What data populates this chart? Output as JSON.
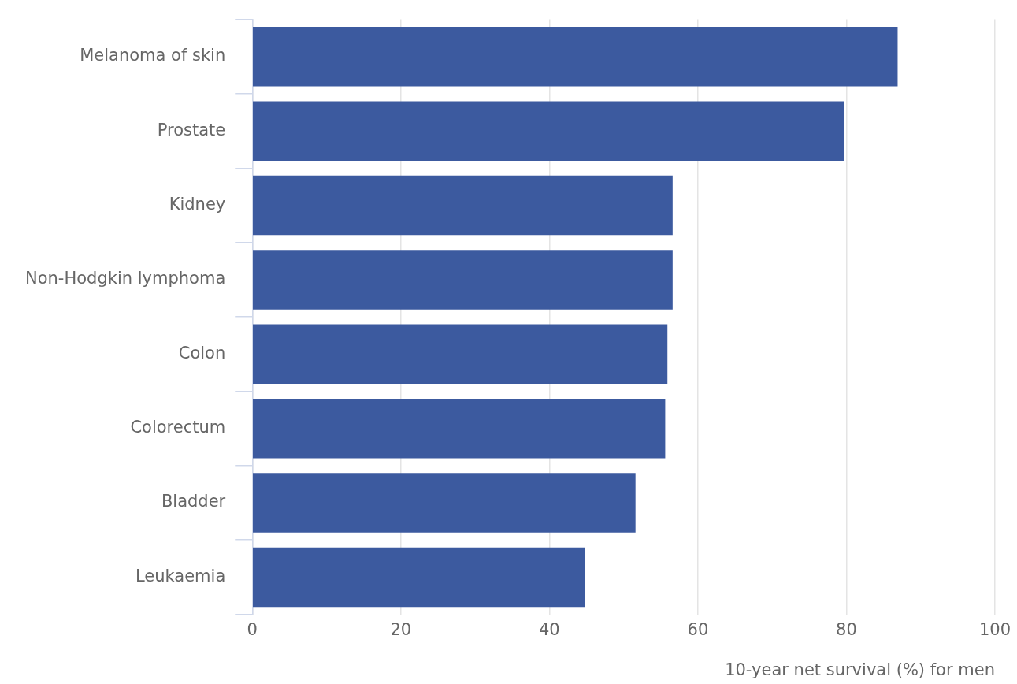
{
  "chart_data": {
    "type": "bar",
    "orientation": "horizontal",
    "xlabel": "10-year net survival (%) for men",
    "categories": [
      "Melanoma of skin",
      "Prostate",
      "Kidney",
      "Non-Hodgkin lymphoma",
      "Colon",
      "Colorectum",
      "Bladder",
      "Leukaemia"
    ],
    "values": [
      86.9,
      79.7,
      56.6,
      56.6,
      55.9,
      55.6,
      51.6,
      44.8
    ],
    "color": "#3c5a9f",
    "xlim": [
      0,
      100
    ],
    "xticks": [
      0,
      20,
      40,
      60,
      80,
      100
    ],
    "grid": "x",
    "legend": false
  }
}
